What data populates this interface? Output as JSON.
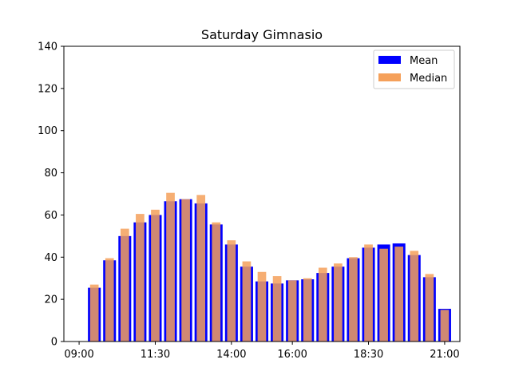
{
  "chart_data": {
    "type": "bar",
    "title": "Saturday Gimnasio",
    "xlabel": "",
    "ylabel": "",
    "ylim": [
      0,
      140
    ],
    "yticks": [
      0,
      20,
      40,
      60,
      80,
      100,
      120,
      140
    ],
    "xlim": [
      "08:30",
      "21:30"
    ],
    "xticks": [
      "09:00",
      "11:30",
      "14:00",
      "16:00",
      "18:30",
      "21:00"
    ],
    "legend": {
      "position": "top-right",
      "grid": false
    },
    "times": [
      "09:30",
      "10:00",
      "10:30",
      "11:00",
      "11:30",
      "12:00",
      "12:30",
      "13:00",
      "13:30",
      "14:00",
      "14:30",
      "15:00",
      "15:30",
      "16:00",
      "16:30",
      "17:00",
      "17:30",
      "18:00",
      "18:30",
      "19:00",
      "19:30",
      "20:00",
      "20:30",
      "21:00"
    ],
    "series": [
      {
        "name": "Mean",
        "color": "#0000ff",
        "values": [
          25.5,
          38.5,
          50.0,
          56.5,
          60.0,
          66.5,
          67.5,
          65.5,
          55.5,
          46.0,
          35.5,
          28.5,
          27.5,
          29.0,
          29.5,
          32.5,
          35.5,
          39.5,
          44.5,
          46.0,
          46.5,
          41.0,
          30.5,
          15.5
        ]
      },
      {
        "name": "Median",
        "color": "#f5a05a",
        "values": [
          27.0,
          39.5,
          53.5,
          60.5,
          62.5,
          70.5,
          67.5,
          69.5,
          56.5,
          48.0,
          38.0,
          33.0,
          31.0,
          29.0,
          30.0,
          35.0,
          37.0,
          40.0,
          46.0,
          44.0,
          45.0,
          43.0,
          32.0,
          15.0
        ]
      }
    ]
  }
}
